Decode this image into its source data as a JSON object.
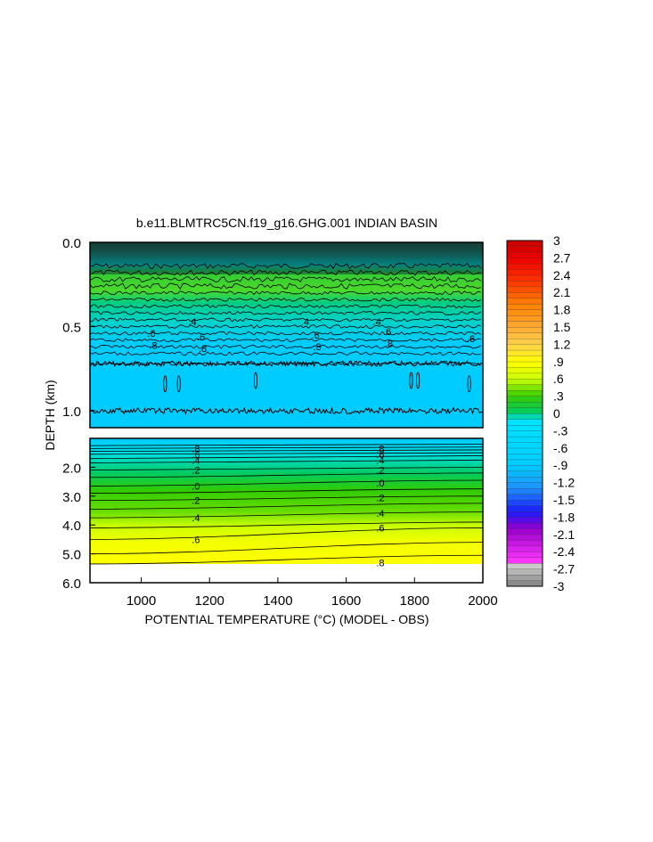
{
  "chart_data": {
    "type": "heatmap",
    "title": "b.e11.BLMTRC5CN.f19_g16.GHG.001 INDIAN BASIN",
    "xlabel": "POTENTIAL TEMPERATURE (°C) (MODEL - OBS)",
    "ylabel": "DEPTH (km)",
    "xlim": [
      850,
      2000
    ],
    "x_ticks": [
      "1000",
      "1200",
      "1400",
      "1600",
      "1800",
      "2000"
    ],
    "x_tick_values": [
      1000,
      1200,
      1400,
      1600,
      1800,
      2000
    ],
    "upper_panel": {
      "ylim": [
        0.0,
        1.1
      ],
      "y_ticks": [
        "0.0",
        "0.5",
        "1.0"
      ],
      "y_tick_values": [
        0.0,
        0.5,
        1.0
      ],
      "contour_labels": [
        {
          "text": ".6",
          "x": 1030,
          "depth": 0.54
        },
        {
          "text": ".8",
          "x": 1035,
          "depth": 0.61
        },
        {
          "text": ".4",
          "x": 1150,
          "depth": 0.47
        },
        {
          "text": ".6",
          "x": 1175,
          "depth": 0.56
        },
        {
          "text": ".8",
          "x": 1180,
          "depth": 0.63
        },
        {
          "text": ".4",
          "x": 1480,
          "depth": 0.47
        },
        {
          "text": ".6",
          "x": 1510,
          "depth": 0.55
        },
        {
          "text": ".8",
          "x": 1515,
          "depth": 0.62
        },
        {
          "text": ".4",
          "x": 1690,
          "depth": 0.47
        },
        {
          "text": ".6",
          "x": 1720,
          "depth": 0.53
        },
        {
          "text": ".8",
          "x": 1725,
          "depth": 0.6
        },
        {
          "text": ".6",
          "x": 1965,
          "depth": 0.57
        }
      ]
    },
    "lower_panel": {
      "ylim": [
        1.0,
        6.0
      ],
      "y_ticks": [
        "2.0",
        "3.0",
        "4.0",
        "5.0",
        "6.0"
      ],
      "y_tick_values": [
        2.0,
        3.0,
        4.0,
        5.0,
        6.0
      ],
      "contour_labels": [
        {
          "text": ".8",
          "x": 1160,
          "depth": 1.35
        },
        {
          "text": ".6",
          "x": 1160,
          "depth": 1.55
        },
        {
          "text": ".4",
          "x": 1160,
          "depth": 1.75
        },
        {
          "text": ".2",
          "x": 1160,
          "depth": 2.1
        },
        {
          "text": ".0",
          "x": 1160,
          "depth": 2.65
        },
        {
          "text": ".2",
          "x": 1160,
          "depth": 3.15
        },
        {
          "text": ".4",
          "x": 1160,
          "depth": 3.75
        },
        {
          "text": ".6",
          "x": 1160,
          "depth": 4.5
        },
        {
          "text": ".8",
          "x": 1700,
          "depth": 1.35
        },
        {
          "text": ".6",
          "x": 1700,
          "depth": 1.55
        },
        {
          "text": ".4",
          "x": 1700,
          "depth": 1.75
        },
        {
          "text": ".2",
          "x": 1700,
          "depth": 2.1
        },
        {
          "text": ".0",
          "x": 1700,
          "depth": 2.55
        },
        {
          "text": ".2",
          "x": 1700,
          "depth": 3.05
        },
        {
          "text": ".4",
          "x": 1700,
          "depth": 3.6
        },
        {
          "text": ".6",
          "x": 1700,
          "depth": 4.1
        },
        {
          "text": ".8",
          "x": 1700,
          "depth": 5.3
        }
      ]
    },
    "colorbar": {
      "range": [
        -3,
        3
      ],
      "labels": [
        "3",
        "2.7",
        "2.4",
        "2.1",
        "1.8",
        "1.5",
        "1.2",
        ".9",
        ".6",
        ".3",
        "0",
        "-.3",
        "-.6",
        "-.9",
        "-1.2",
        "-1.5",
        "-1.8",
        "-2.1",
        "-2.4",
        "-2.7",
        "-3"
      ],
      "label_values": [
        3,
        2.7,
        2.4,
        2.1,
        1.8,
        1.5,
        1.2,
        0.9,
        0.6,
        0.3,
        0,
        -0.3,
        -0.6,
        -0.9,
        -1.2,
        -1.5,
        -1.8,
        -2.1,
        -2.4,
        -2.7,
        -3
      ],
      "color_stops": [
        {
          "v": -3.0,
          "c": "#808080"
        },
        {
          "v": -2.6,
          "c": "#d4d4d4"
        },
        {
          "v": -2.55,
          "c": "#ff33ff"
        },
        {
          "v": -2.0,
          "c": "#9900cc"
        },
        {
          "v": -1.7,
          "c": "#1a1aff"
        },
        {
          "v": -1.3,
          "c": "#1e90ff"
        },
        {
          "v": -0.9,
          "c": "#00ccff"
        },
        {
          "v": -0.1,
          "c": "#00e5ff"
        },
        {
          "v": 0.0,
          "c": "#00cc66"
        },
        {
          "v": 0.3,
          "c": "#33cc00"
        },
        {
          "v": 0.6,
          "c": "#ccff00"
        },
        {
          "v": 0.9,
          "c": "#ffff00"
        },
        {
          "v": 1.2,
          "c": "#ffd24d"
        },
        {
          "v": 1.5,
          "c": "#ffaa33"
        },
        {
          "v": 1.9,
          "c": "#ff8000"
        },
        {
          "v": 2.3,
          "c": "#ff3300"
        },
        {
          "v": 2.7,
          "c": "#ee0000"
        },
        {
          "v": 3.0,
          "c": "#c80000"
        }
      ]
    }
  }
}
